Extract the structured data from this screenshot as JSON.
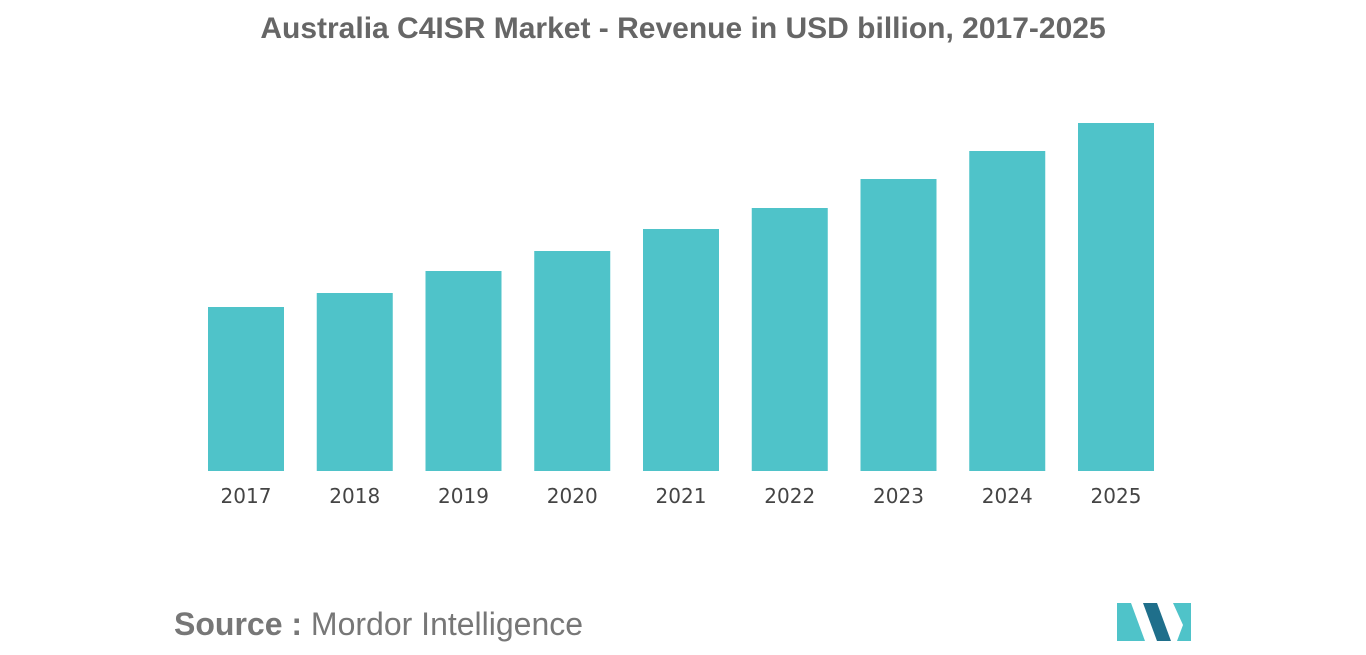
{
  "source": {
    "label": "Source :",
    "text": "Mordor Intelligence"
  },
  "colors": {
    "bar": "#4fc3c9",
    "logo_dark": "#1f6f8b",
    "logo_light": "#4fc3c9"
  },
  "chart_data": {
    "type": "bar",
    "title": "Australia C4ISR Market - Revenue in USD billion, 2017-2025",
    "categories": [
      "2017",
      "2018",
      "2019",
      "2020",
      "2021",
      "2022",
      "2023",
      "2024",
      "2025"
    ],
    "values": [
      1.64,
      1.78,
      2.0,
      2.2,
      2.42,
      2.63,
      2.92,
      3.2,
      3.48
    ],
    "xlabel": "",
    "ylabel": "",
    "ylim": [
      0,
      3.5
    ],
    "grid": false,
    "legend": "none"
  }
}
